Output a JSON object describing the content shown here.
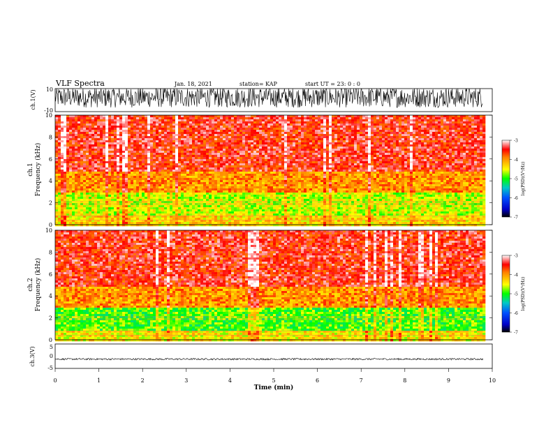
{
  "header": {
    "title": "VLF Spectra",
    "date": "Jan. 18, 2021",
    "station": "station= KAP",
    "start": "start  UT =   23: 0  : 0"
  },
  "chart_data": [
    {
      "type": "line",
      "ylabel": "ch.1(V)",
      "ylim": [
        -10,
        10
      ],
      "yticks": [
        "10",
        "-10"
      ],
      "xlim": [
        0,
        10
      ],
      "note": "dense oscillating waveform, values mostly between -5 and 10"
    },
    {
      "type": "heatmap",
      "ylabel": "ch.1\nFrequency (kHz)",
      "ylabel_lines": [
        "ch.1",
        "Frequency (kHz)"
      ],
      "ylim": [
        0,
        10
      ],
      "yticks": [
        "0",
        "2",
        "4",
        "6",
        "8",
        "10"
      ],
      "xlim": [
        0,
        10
      ],
      "colorbar": {
        "label": "log(PSD)(V²/Hz)",
        "ticks": [
          "-3",
          "-4",
          "-5",
          "-6",
          "-7"
        ],
        "range": [
          -7,
          -3
        ]
      },
      "band_power": [
        {
          "freq_range_khz": [
            0,
            1
          ],
          "level": -4.3
        },
        {
          "freq_range_khz": [
            1,
            3
          ],
          "level": -4.6
        },
        {
          "freq_range_khz": [
            3,
            5
          ],
          "level": -4.0
        },
        {
          "freq_range_khz": [
            5,
            10
          ],
          "level": -3.5
        }
      ]
    },
    {
      "type": "heatmap",
      "ylabel": "ch.2\nFrequency (kHz)",
      "ylabel_lines": [
        "ch.2",
        "Frequency (kHz)"
      ],
      "ylim": [
        0,
        10
      ],
      "yticks": [
        "0",
        "2",
        "4",
        "6",
        "8",
        "10"
      ],
      "xlim": [
        0,
        10
      ],
      "colorbar": {
        "label": "log(PSD)(V²/Hz)",
        "ticks": [
          "-3",
          "-4",
          "-5",
          "-6",
          "-7"
        ],
        "range": [
          -7,
          -3
        ]
      },
      "band_power": [
        {
          "freq_range_khz": [
            0,
            1
          ],
          "level": -4.4
        },
        {
          "freq_range_khz": [
            1,
            3
          ],
          "level": -4.9
        },
        {
          "freq_range_khz": [
            3,
            5
          ],
          "level": -4.0
        },
        {
          "freq_range_khz": [
            5,
            10
          ],
          "level": -3.5
        }
      ]
    },
    {
      "type": "line",
      "ylabel": "ch.3(V)",
      "ylim": [
        -5,
        5
      ],
      "yticks": [
        "5",
        "0",
        "-5"
      ],
      "xlim": [
        0,
        10
      ],
      "note": "thin band of values near -1.2 V",
      "xlabel": "Time (min)",
      "xticks": [
        "0",
        "1",
        "2",
        "3",
        "4",
        "5",
        "6",
        "7",
        "8",
        "9",
        "10"
      ]
    }
  ]
}
